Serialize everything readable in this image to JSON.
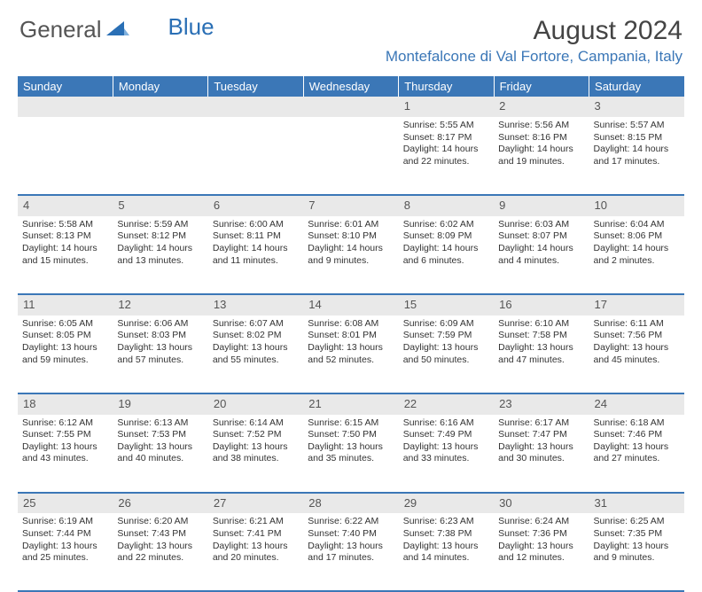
{
  "brand": {
    "part1": "General",
    "part2": "Blue"
  },
  "title": "August 2024",
  "location": "Montefalcone di Val Fortore, Campania, Italy",
  "colors": {
    "header_bg": "#3b77b7",
    "header_text": "#ffffff",
    "daynum_bg": "#e9e9e9",
    "daynum_text": "#555555",
    "border": "#3b77b7",
    "body_text": "#333333",
    "location_text": "#3b77b7"
  },
  "day_headers": [
    "Sunday",
    "Monday",
    "Tuesday",
    "Wednesday",
    "Thursday",
    "Friday",
    "Saturday"
  ],
  "weeks": [
    [
      null,
      null,
      null,
      null,
      {
        "n": "1",
        "sr": "5:55 AM",
        "ss": "8:17 PM",
        "dl": "14 hours and 22 minutes."
      },
      {
        "n": "2",
        "sr": "5:56 AM",
        "ss": "8:16 PM",
        "dl": "14 hours and 19 minutes."
      },
      {
        "n": "3",
        "sr": "5:57 AM",
        "ss": "8:15 PM",
        "dl": "14 hours and 17 minutes."
      }
    ],
    [
      {
        "n": "4",
        "sr": "5:58 AM",
        "ss": "8:13 PM",
        "dl": "14 hours and 15 minutes."
      },
      {
        "n": "5",
        "sr": "5:59 AM",
        "ss": "8:12 PM",
        "dl": "14 hours and 13 minutes."
      },
      {
        "n": "6",
        "sr": "6:00 AM",
        "ss": "8:11 PM",
        "dl": "14 hours and 11 minutes."
      },
      {
        "n": "7",
        "sr": "6:01 AM",
        "ss": "8:10 PM",
        "dl": "14 hours and 9 minutes."
      },
      {
        "n": "8",
        "sr": "6:02 AM",
        "ss": "8:09 PM",
        "dl": "14 hours and 6 minutes."
      },
      {
        "n": "9",
        "sr": "6:03 AM",
        "ss": "8:07 PM",
        "dl": "14 hours and 4 minutes."
      },
      {
        "n": "10",
        "sr": "6:04 AM",
        "ss": "8:06 PM",
        "dl": "14 hours and 2 minutes."
      }
    ],
    [
      {
        "n": "11",
        "sr": "6:05 AM",
        "ss": "8:05 PM",
        "dl": "13 hours and 59 minutes."
      },
      {
        "n": "12",
        "sr": "6:06 AM",
        "ss": "8:03 PM",
        "dl": "13 hours and 57 minutes."
      },
      {
        "n": "13",
        "sr": "6:07 AM",
        "ss": "8:02 PM",
        "dl": "13 hours and 55 minutes."
      },
      {
        "n": "14",
        "sr": "6:08 AM",
        "ss": "8:01 PM",
        "dl": "13 hours and 52 minutes."
      },
      {
        "n": "15",
        "sr": "6:09 AM",
        "ss": "7:59 PM",
        "dl": "13 hours and 50 minutes."
      },
      {
        "n": "16",
        "sr": "6:10 AM",
        "ss": "7:58 PM",
        "dl": "13 hours and 47 minutes."
      },
      {
        "n": "17",
        "sr": "6:11 AM",
        "ss": "7:56 PM",
        "dl": "13 hours and 45 minutes."
      }
    ],
    [
      {
        "n": "18",
        "sr": "6:12 AM",
        "ss": "7:55 PM",
        "dl": "13 hours and 43 minutes."
      },
      {
        "n": "19",
        "sr": "6:13 AM",
        "ss": "7:53 PM",
        "dl": "13 hours and 40 minutes."
      },
      {
        "n": "20",
        "sr": "6:14 AM",
        "ss": "7:52 PM",
        "dl": "13 hours and 38 minutes."
      },
      {
        "n": "21",
        "sr": "6:15 AM",
        "ss": "7:50 PM",
        "dl": "13 hours and 35 minutes."
      },
      {
        "n": "22",
        "sr": "6:16 AM",
        "ss": "7:49 PM",
        "dl": "13 hours and 33 minutes."
      },
      {
        "n": "23",
        "sr": "6:17 AM",
        "ss": "7:47 PM",
        "dl": "13 hours and 30 minutes."
      },
      {
        "n": "24",
        "sr": "6:18 AM",
        "ss": "7:46 PM",
        "dl": "13 hours and 27 minutes."
      }
    ],
    [
      {
        "n": "25",
        "sr": "6:19 AM",
        "ss": "7:44 PM",
        "dl": "13 hours and 25 minutes."
      },
      {
        "n": "26",
        "sr": "6:20 AM",
        "ss": "7:43 PM",
        "dl": "13 hours and 22 minutes."
      },
      {
        "n": "27",
        "sr": "6:21 AM",
        "ss": "7:41 PM",
        "dl": "13 hours and 20 minutes."
      },
      {
        "n": "28",
        "sr": "6:22 AM",
        "ss": "7:40 PM",
        "dl": "13 hours and 17 minutes."
      },
      {
        "n": "29",
        "sr": "6:23 AM",
        "ss": "7:38 PM",
        "dl": "13 hours and 14 minutes."
      },
      {
        "n": "30",
        "sr": "6:24 AM",
        "ss": "7:36 PM",
        "dl": "13 hours and 12 minutes."
      },
      {
        "n": "31",
        "sr": "6:25 AM",
        "ss": "7:35 PM",
        "dl": "13 hours and 9 minutes."
      }
    ]
  ],
  "labels": {
    "sunrise": "Sunrise:",
    "sunset": "Sunset:",
    "daylight": "Daylight:"
  }
}
